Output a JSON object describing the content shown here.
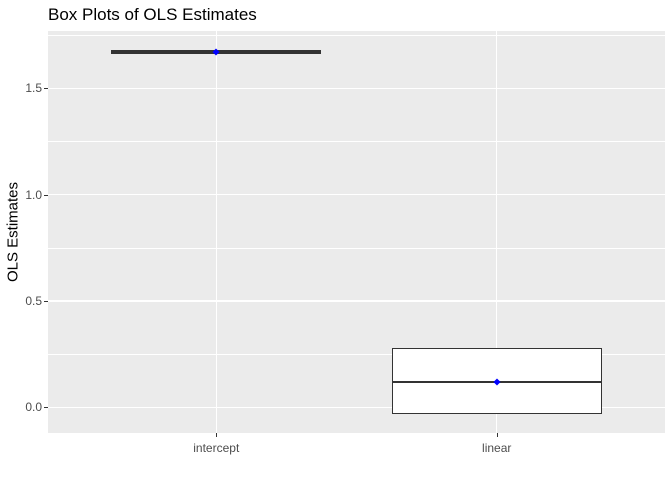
{
  "chart_data": {
    "type": "boxplot",
    "title": "Box Plots of OLS Estimates",
    "ylabel": "OLS Estimates",
    "xlabel": "",
    "categories": [
      "intercept",
      "linear"
    ],
    "y_ticks": [
      {
        "value": 0.0,
        "label": "0.0"
      },
      {
        "value": 0.5,
        "label": "0.5"
      },
      {
        "value": 1.0,
        "label": "1.0"
      },
      {
        "value": 1.5,
        "label": "1.5"
      }
    ],
    "y_minor_ticks": [
      0.25,
      0.75,
      1.25,
      1.75
    ],
    "ylim": [
      -0.12,
      1.77
    ],
    "grid": true,
    "legend_position": "none",
    "series": [
      {
        "category": "intercept",
        "whisker_low": 1.66,
        "q1": 1.66,
        "median": 1.67,
        "q3": 1.68,
        "whisker_high": 1.68,
        "mean": 1.67
      },
      {
        "category": "linear",
        "whisker_low": -0.03,
        "q1": -0.03,
        "median": 0.12,
        "q3": 0.28,
        "whisker_high": 0.28,
        "mean": 0.12
      }
    ],
    "colors": {
      "panel_background": "#EBEBEB",
      "grid": "#FFFFFF",
      "box_border": "#333333",
      "box_fill": "#FFFFFF",
      "mean_point": "#0000FF",
      "axis_text": "#4D4D4D",
      "tick_mark": "#333333",
      "title_text": "#000000"
    }
  }
}
